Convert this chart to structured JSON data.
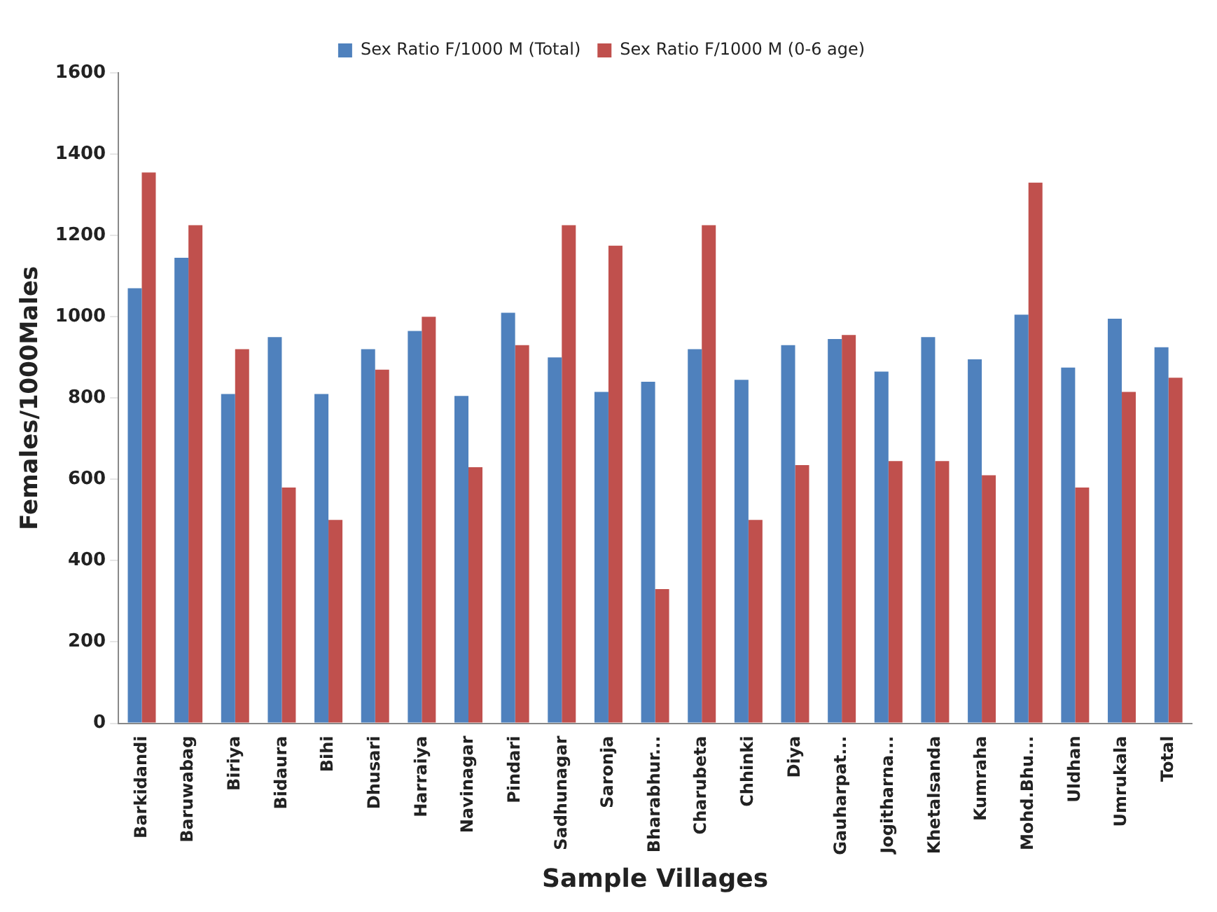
{
  "chart_data": {
    "type": "bar",
    "xlabel": "Sample Villages",
    "ylabel": "Females/1000Males",
    "categories": [
      "Barkidandi",
      "Baruwabag",
      "Biriya",
      "Bidaura",
      "Bihi",
      "Dhusari",
      "Harraiya",
      "Navinagar",
      "Pindari",
      "Sadhunagar",
      "Saronja",
      "Bharabhur...",
      "Charubeta",
      "Chhinki",
      "Diya",
      "Gauharpat...",
      "Jogitharna...",
      "Khetalsanda",
      "Kumraha",
      "Mohd.Bhu...",
      "Uldhan",
      "Umrukala",
      "Total"
    ],
    "series": [
      {
        "name": "Sex Ratio F/1000 M (Total)",
        "color": "#4f81bd",
        "values": [
          1070,
          1145,
          810,
          950,
          810,
          920,
          965,
          805,
          1010,
          900,
          815,
          840,
          920,
          845,
          930,
          945,
          865,
          950,
          895,
          1005,
          875,
          995,
          925
        ]
      },
      {
        "name": "Sex Ratio F/1000 M (0-6 age)",
        "color": "#c0504d",
        "values": [
          1355,
          1225,
          920,
          580,
          500,
          870,
          1000,
          630,
          930,
          1225,
          1175,
          330,
          1225,
          500,
          635,
          955,
          645,
          645,
          610,
          1330,
          580,
          815,
          850
        ]
      }
    ],
    "ylim": [
      0,
      1600
    ],
    "yticks": [
      0,
      200,
      400,
      600,
      800,
      1000,
      1200,
      1400,
      1600
    ],
    "grid": false,
    "legend": "top"
  }
}
